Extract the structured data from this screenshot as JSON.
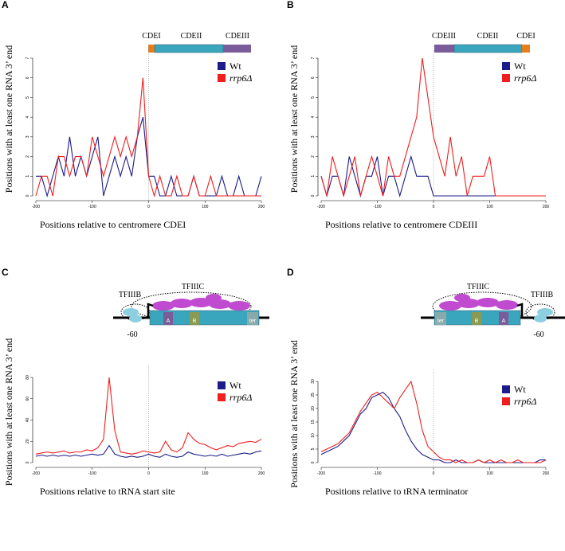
{
  "chart_data": [
    {
      "type": "line",
      "panel_label": "A",
      "xlabel": "Positions relative to centromere CDEI",
      "ylabel": "Positions with at least one RNA 3’ end",
      "diagram_labels": [
        "CDEI",
        "CDEII",
        "CDEIII"
      ],
      "legend": "upper right",
      "xlim": [
        -200,
        200
      ],
      "xticks": [
        -200,
        -100,
        0,
        100,
        200
      ],
      "ylim": [
        0,
        7
      ],
      "yticks": [
        0,
        1,
        2,
        3,
        4,
        5,
        6,
        7
      ],
      "x": [
        -200,
        -190,
        -180,
        -170,
        -160,
        -150,
        -140,
        -130,
        -120,
        -110,
        -100,
        -90,
        -80,
        -70,
        -60,
        -50,
        -40,
        -30,
        -20,
        -10,
        0,
        10,
        20,
        30,
        40,
        50,
        60,
        70,
        80,
        90,
        100,
        110,
        120,
        130,
        140,
        150,
        160,
        170,
        180,
        190,
        200
      ],
      "series": [
        {
          "name": "Wt",
          "color": "#1c1c8a",
          "values": [
            1,
            1,
            0,
            1,
            2,
            1,
            3,
            1,
            2,
            1,
            2,
            3,
            0,
            1,
            2,
            1,
            2,
            1,
            3,
            4,
            1,
            1,
            0,
            0,
            1,
            0,
            0,
            0,
            1,
            0,
            0,
            0,
            0,
            1,
            0,
            0,
            1,
            0,
            0,
            0,
            1
          ]
        },
        {
          "name": "rrp6Δ",
          "color": "#f01e1e",
          "values": [
            0,
            1,
            1,
            0,
            2,
            2,
            1,
            2,
            2,
            1,
            3,
            2,
            1,
            2,
            3,
            2,
            3,
            2,
            3,
            6,
            1,
            0,
            1,
            0,
            0,
            1,
            0,
            0,
            1,
            0,
            0,
            1,
            0,
            0,
            0,
            0,
            0,
            0,
            0,
            0,
            0
          ]
        }
      ]
    },
    {
      "type": "line",
      "panel_label": "B",
      "xlabel": "Positions relative to centromere CDEIII",
      "ylabel": "Positions with at least one RNA 3’ end",
      "diagram_labels": [
        "CDEIII",
        "CDEII",
        "CDEI"
      ],
      "legend": "upper right",
      "xlim": [
        -200,
        200
      ],
      "xticks": [
        -200,
        -100,
        0,
        100,
        200
      ],
      "ylim": [
        0,
        7
      ],
      "yticks": [
        0,
        1,
        2,
        3,
        4,
        5,
        6,
        7
      ],
      "x": [
        -200,
        -190,
        -180,
        -170,
        -160,
        -150,
        -140,
        -130,
        -120,
        -110,
        -100,
        -90,
        -80,
        -70,
        -60,
        -50,
        -40,
        -30,
        -20,
        -10,
        0,
        10,
        20,
        30,
        40,
        50,
        60,
        70,
        80,
        90,
        100,
        110,
        120,
        130,
        140,
        150,
        160,
        170,
        180,
        190,
        200
      ],
      "series": [
        {
          "name": "Wt",
          "color": "#1c1c8a",
          "values": [
            1,
            0,
            1,
            1,
            0,
            2,
            1,
            0,
            1,
            1,
            2,
            0,
            1,
            1,
            0,
            1,
            2,
            1,
            1,
            1,
            0,
            0,
            0,
            0,
            0,
            0,
            0,
            0,
            0,
            0,
            0,
            0,
            0,
            0,
            0,
            0,
            0,
            0,
            0,
            0,
            0
          ]
        },
        {
          "name": "rrp6Δ",
          "color": "#f01e1e",
          "values": [
            1,
            0,
            2,
            1,
            0,
            1,
            2,
            0,
            1,
            2,
            1,
            0,
            2,
            1,
            1,
            2,
            3,
            4,
            7,
            5,
            3,
            2,
            1,
            3,
            1,
            2,
            0,
            1,
            1,
            1,
            2,
            0,
            0,
            0,
            0,
            0,
            0,
            0,
            0,
            0,
            0
          ]
        }
      ]
    },
    {
      "type": "line",
      "panel_label": "C",
      "xlabel": "Positions relative to tRNA start site",
      "ylabel": "Positions with at least one RNA 3’ end",
      "diagram_labels": [
        "TFIIIB",
        "TFIIIC",
        "-60",
        "A",
        "B",
        "ter"
      ],
      "legend": "upper right",
      "xlim": [
        -200,
        200
      ],
      "xticks": [
        -200,
        -100,
        0,
        100,
        200
      ],
      "ylim": [
        0,
        80
      ],
      "yticks": [
        0,
        20,
        40,
        60,
        80
      ],
      "x": [
        -200,
        -190,
        -180,
        -170,
        -160,
        -150,
        -140,
        -130,
        -120,
        -110,
        -100,
        -90,
        -80,
        -70,
        -60,
        -50,
        -40,
        -30,
        -20,
        -10,
        0,
        10,
        20,
        30,
        40,
        50,
        60,
        70,
        80,
        90,
        100,
        110,
        120,
        130,
        140,
        150,
        160,
        170,
        180,
        190,
        200
      ],
      "series": [
        {
          "name": "Wt",
          "color": "#1c1c8a",
          "values": [
            6,
            7,
            6,
            7,
            6,
            7,
            6,
            7,
            6,
            7,
            8,
            7,
            8,
            16,
            8,
            6,
            5,
            6,
            5,
            6,
            8,
            6,
            5,
            8,
            6,
            5,
            6,
            10,
            8,
            7,
            6,
            7,
            6,
            8,
            6,
            7,
            8,
            9,
            8,
            10,
            11
          ]
        },
        {
          "name": "rrp6Δ",
          "color": "#f01e1e",
          "values": [
            8,
            9,
            10,
            9,
            10,
            11,
            9,
            10,
            10,
            12,
            11,
            14,
            22,
            80,
            30,
            10,
            9,
            8,
            9,
            11,
            10,
            9,
            10,
            20,
            12,
            10,
            14,
            28,
            22,
            18,
            17,
            14,
            12,
            14,
            16,
            15,
            18,
            19,
            20,
            19,
            22
          ]
        }
      ]
    },
    {
      "type": "line",
      "panel_label": "D",
      "xlabel": "Positions relative to tRNA terminator",
      "ylabel": "Positions with at least one RNA 3’ end",
      "diagram_labels": [
        "TFIIIC",
        "TFIIIB",
        "-60",
        "ter",
        "B",
        "A"
      ],
      "legend": "upper right",
      "xlim": [
        -200,
        200
      ],
      "xticks": [
        -200,
        -100,
        0,
        100,
        200
      ],
      "ylim": [
        0,
        30
      ],
      "yticks": [
        0,
        5,
        10,
        15,
        20,
        25,
        30
      ],
      "x": [
        -200,
        -190,
        -180,
        -170,
        -160,
        -150,
        -140,
        -130,
        -120,
        -110,
        -100,
        -90,
        -80,
        -70,
        -60,
        -50,
        -40,
        -30,
        -20,
        -10,
        0,
        10,
        20,
        30,
        40,
        50,
        60,
        70,
        80,
        90,
        100,
        110,
        120,
        130,
        140,
        150,
        160,
        170,
        180,
        190,
        200
      ],
      "series": [
        {
          "name": "Wt",
          "color": "#1c1c8a",
          "values": [
            3,
            4,
            5,
            6,
            8,
            10,
            14,
            18,
            20,
            24,
            25,
            26,
            24,
            20,
            17,
            12,
            8,
            5,
            3,
            2,
            1,
            1,
            0,
            0,
            1,
            0,
            0,
            0,
            1,
            0,
            0,
            0,
            0,
            0,
            0,
            0,
            0,
            0,
            0,
            1,
            1
          ]
        },
        {
          "name": "rrp6Δ",
          "color": "#f01e1e",
          "values": [
            4,
            5,
            6,
            7,
            9,
            11,
            15,
            19,
            22,
            25,
            26,
            24,
            22,
            20,
            24,
            27,
            30,
            22,
            12,
            6,
            4,
            2,
            1,
            1,
            0,
            1,
            0,
            0,
            1,
            0,
            1,
            0,
            1,
            0,
            0,
            1,
            0,
            0,
            0,
            0,
            1
          ]
        }
      ]
    }
  ]
}
